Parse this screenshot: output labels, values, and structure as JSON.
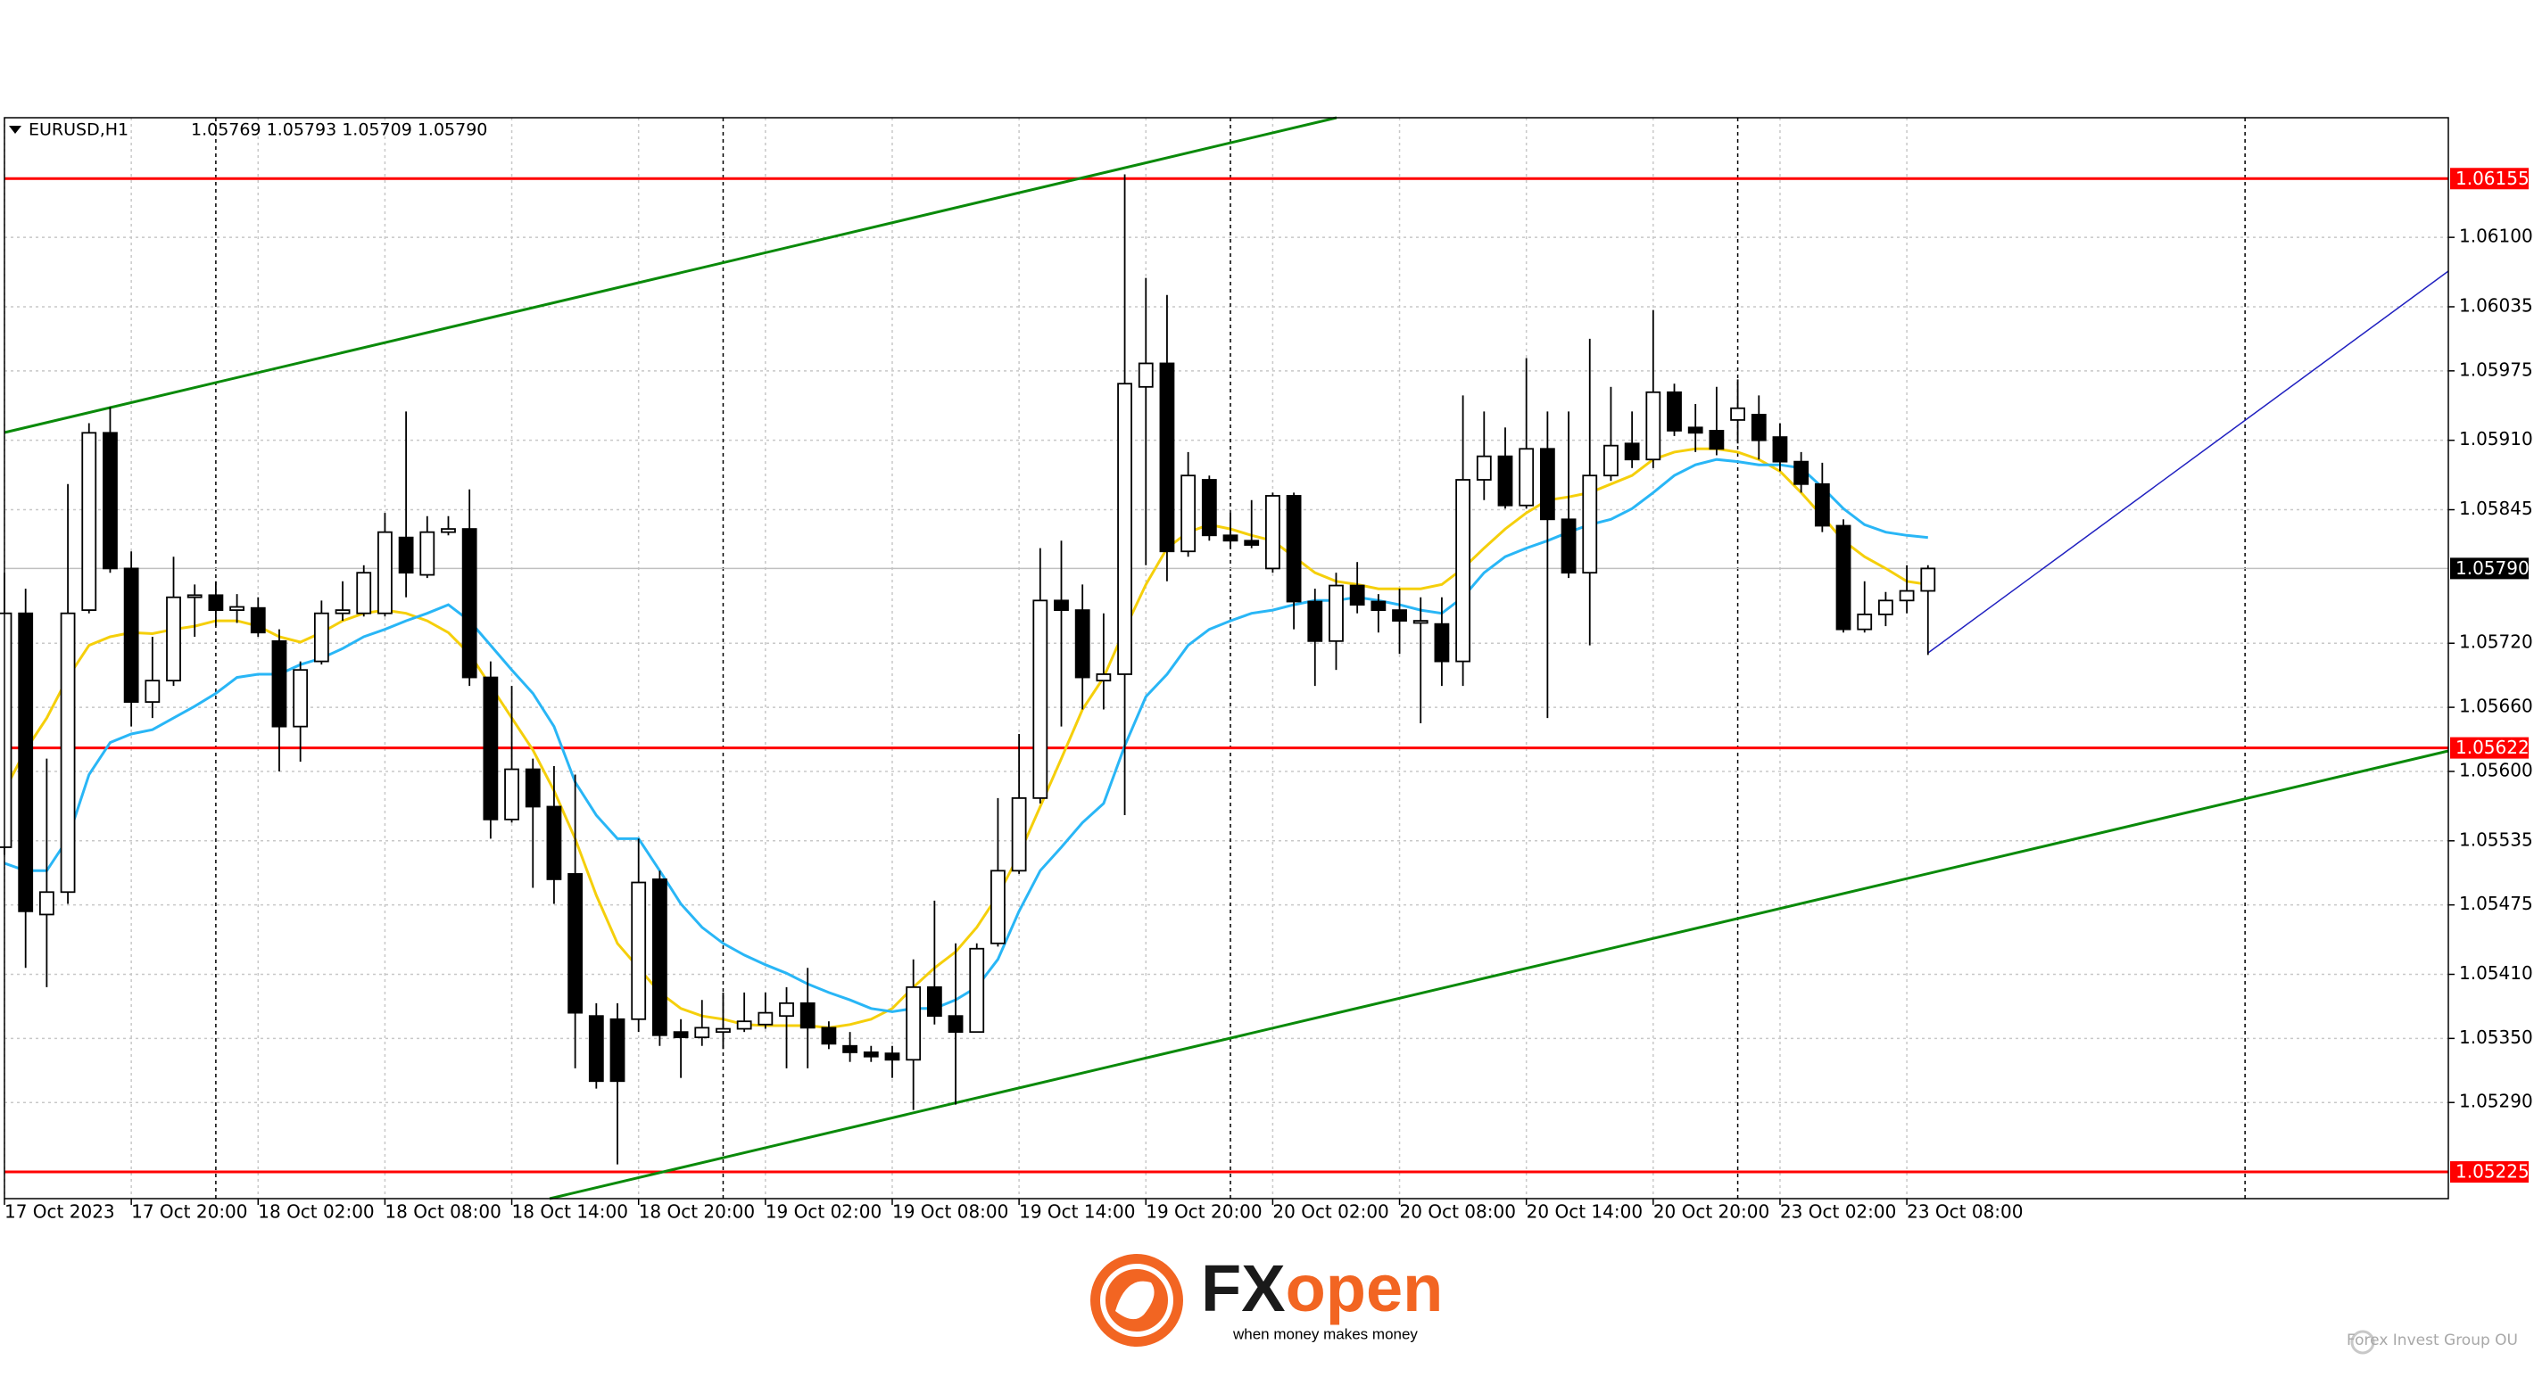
{
  "chart_data": {
    "type": "candlestick",
    "header": {
      "symbol": "EURUSD,H1",
      "ohlc": "1.05769 1.05793 1.05709 1.05790"
    },
    "x": [
      "17 Oct 2023",
      null,
      null,
      null,
      null,
      null,
      "17 Oct 20:00",
      null,
      null,
      null,
      null,
      null,
      "18 Oct 02:00",
      null,
      null,
      null,
      null,
      null,
      "18 Oct 08:00",
      null,
      null,
      null,
      null,
      null,
      "18 Oct 14:00",
      null,
      null,
      null,
      null,
      null,
      "18 Oct 20:00",
      null,
      null,
      null,
      null,
      null,
      "19 Oct 02:00",
      null,
      null,
      null,
      null,
      null,
      "19 Oct 08:00",
      null,
      null,
      null,
      null,
      null,
      "19 Oct 14:00",
      null,
      null,
      null,
      null,
      null,
      "19 Oct 20:00",
      null,
      null,
      null,
      null,
      null,
      "20 Oct 02:00",
      null,
      null,
      null,
      null,
      null,
      "20 Oct 08:00",
      null,
      null,
      null,
      null,
      null,
      "20 Oct 14:00",
      null,
      null,
      null,
      null,
      null,
      "20 Oct 20:00",
      null,
      null,
      null,
      null,
      null,
      "23 Oct 02:00",
      null,
      null,
      null,
      null,
      null,
      "23 Oct 08:00",
      null
    ],
    "open": [
      1.05529,
      1.05748,
      1.05466,
      1.05487,
      1.05751,
      1.05917,
      1.0579,
      1.05665,
      1.05685,
      1.05763,
      1.05765,
      1.05751,
      1.05753,
      1.05722,
      1.05642,
      1.05703,
      1.05748,
      1.05748,
      1.05748,
      1.05819,
      1.05784,
      1.05824,
      1.05827,
      1.05688,
      1.05555,
      1.05602,
      1.05567,
      1.05504,
      1.05371,
      1.05368,
      1.05368,
      1.05499,
      1.05356,
      1.05351,
      1.05356,
      1.05359,
      1.05363,
      1.05371,
      1.05383,
      1.0536,
      1.05343,
      1.05337,
      1.05336,
      1.0533,
      1.05398,
      1.05371,
      1.05356,
      1.05439,
      1.05507,
      1.05575,
      1.0576,
      1.05751,
      1.05685,
      1.05691,
      1.0596,
      1.05982,
      1.05806,
      1.05873,
      1.05821,
      1.05816,
      1.0579,
      1.05858,
      1.05759,
      1.05722,
      1.05774,
      1.05759,
      1.05751,
      1.05739,
      1.05738,
      1.05703,
      1.05873,
      1.05895,
      1.05849,
      1.05902,
      1.05836,
      1.05786,
      1.05877,
      1.05907,
      1.05892,
      1.05955,
      1.05922,
      1.05919,
      1.05929,
      1.05934,
      1.05913,
      1.0589,
      1.05869,
      1.0583,
      1.05733,
      1.05747,
      1.0576,
      1.05769
    ],
    "high": [
      1.05786,
      1.05771,
      1.05612,
      1.05869,
      1.05926,
      1.05941,
      1.05806,
      1.05726,
      1.05801,
      1.05775,
      1.05778,
      1.05766,
      1.05763,
      1.05733,
      1.05703,
      1.0576,
      1.05778,
      1.05793,
      1.05842,
      1.05937,
      1.05839,
      1.05839,
      1.05864,
      1.05703,
      1.0568,
      1.05612,
      1.05605,
      1.05597,
      1.05383,
      1.05383,
      1.05537,
      1.05507,
      1.05368,
      1.05386,
      1.05393,
      1.05393,
      1.05393,
      1.05398,
      1.05416,
      1.05366,
      1.05356,
      1.05343,
      1.05343,
      1.05424,
      1.05479,
      1.05439,
      1.05439,
      1.05575,
      1.05635,
      1.05809,
      1.05816,
      1.05775,
      1.05748,
      1.06159,
      1.06062,
      1.06046,
      1.05899,
      1.05877,
      1.05842,
      1.05854,
      1.05861,
      1.05861,
      1.05771,
      1.05786,
      1.05796,
      1.05766,
      1.05771,
      1.05763,
      1.05763,
      1.05952,
      1.05937,
      1.05922,
      1.05987,
      1.05937,
      1.05937,
      1.06005,
      1.0596,
      1.05937,
      1.06032,
      1.05963,
      1.05944,
      1.0596,
      1.05967,
      1.05952,
      1.05926,
      1.05899,
      1.05889,
      1.05836,
      1.05778,
      1.05768,
      1.05793,
      1.05793
    ],
    "low": [
      1.05522,
      1.05416,
      1.05398,
      1.05476,
      1.05748,
      1.05786,
      1.05642,
      1.0565,
      1.0568,
      1.05726,
      1.05736,
      1.05739,
      1.05726,
      1.056,
      1.05609,
      1.057,
      1.05741,
      1.05745,
      1.05745,
      1.05763,
      1.05781,
      1.05821,
      1.0568,
      1.05537,
      1.05552,
      1.05491,
      1.05476,
      1.05322,
      1.05303,
      1.05232,
      1.05356,
      1.05343,
      1.05313,
      1.05343,
      1.0534,
      1.05356,
      1.05359,
      1.05322,
      1.05322,
      1.0534,
      1.05328,
      1.05328,
      1.05313,
      1.05283,
      1.05363,
      1.05288,
      1.05356,
      1.05436,
      1.05504,
      1.0557,
      1.05642,
      1.05658,
      1.05658,
      1.05559,
      1.05793,
      1.05778,
      1.05801,
      1.05816,
      1.05809,
      1.05809,
      1.05786,
      1.05733,
      1.0568,
      1.05695,
      1.05748,
      1.0573,
      1.0571,
      1.05645,
      1.0568,
      1.0568,
      1.05854,
      1.05846,
      1.05846,
      1.0565,
      1.05781,
      1.05718,
      1.05872,
      1.05884,
      1.05884,
      1.05914,
      1.05899,
      1.05896,
      1.05907,
      1.05892,
      1.05881,
      1.05861,
      1.05824,
      1.0573,
      1.0573,
      1.05736,
      1.05748,
      1.05709
    ],
    "close": [
      1.05748,
      1.05469,
      1.05487,
      1.05748,
      1.05917,
      1.0579,
      1.05665,
      1.05685,
      1.05763,
      1.05765,
      1.05751,
      1.05754,
      1.0573,
      1.05642,
      1.05695,
      1.05748,
      1.05751,
      1.05786,
      1.05824,
      1.05786,
      1.05824,
      1.05827,
      1.05688,
      1.05555,
      1.05602,
      1.05567,
      1.05499,
      1.05374,
      1.0531,
      1.0531,
      1.05496,
      1.05353,
      1.05351,
      1.0536,
      1.05359,
      1.05366,
      1.05374,
      1.05383,
      1.0536,
      1.05345,
      1.05337,
      1.05333,
      1.0533,
      1.05398,
      1.05371,
      1.05356,
      1.05434,
      1.05507,
      1.05575,
      1.0576,
      1.05751,
      1.05688,
      1.05691,
      1.05963,
      1.05982,
      1.05806,
      1.05877,
      1.05821,
      1.05816,
      1.05812,
      1.05858,
      1.05759,
      1.05722,
      1.05774,
      1.05756,
      1.05751,
      1.05741,
      1.05741,
      1.05703,
      1.05873,
      1.05895,
      1.05849,
      1.05902,
      1.05836,
      1.05786,
      1.05877,
      1.05905,
      1.05892,
      1.05955,
      1.05919,
      1.05917,
      1.05902,
      1.0594,
      1.0591,
      1.0589,
      1.05869,
      1.0583,
      1.05733,
      1.05747,
      1.0576,
      1.05769,
      1.0579
    ],
    "up_color": "#ffffff",
    "down_color": "#000000",
    "indicators": [
      {
        "color": "#f5cf0b",
        "values": [
          1.05582,
          1.0562,
          1.0565,
          1.05688,
          1.05718,
          1.05726,
          1.0573,
          1.05729,
          1.05733,
          1.05736,
          1.05741,
          1.05741,
          1.05736,
          1.05726,
          1.05721,
          1.0573,
          1.05741,
          1.05748,
          1.05751,
          1.05748,
          1.05741,
          1.0573,
          1.0571,
          1.0568,
          1.0565,
          1.0562,
          1.05582,
          1.05537,
          1.05484,
          1.05439,
          1.05416,
          1.05393,
          1.05378,
          1.05371,
          1.05368,
          1.05363,
          1.05362,
          1.05362,
          1.05362,
          1.0536,
          1.05363,
          1.05368,
          1.05378,
          1.05398,
          1.05416,
          1.05431,
          1.05454,
          1.05484,
          1.05522,
          1.05567,
          1.05612,
          1.05658,
          1.05688,
          1.05733,
          1.05775,
          1.05809,
          1.05824,
          1.05831,
          1.05827,
          1.05821,
          1.05816,
          1.05801,
          1.05786,
          1.05778,
          1.05775,
          1.05771,
          1.05771,
          1.05771,
          1.05775,
          1.0579,
          1.05809,
          1.05827,
          1.05842,
          1.05854,
          1.05857,
          1.05861,
          1.05869,
          1.05877,
          1.05892,
          1.05899,
          1.05902,
          1.05902,
          1.05899,
          1.05892,
          1.05881,
          1.05861,
          1.05839,
          1.05816,
          1.05801,
          1.0579,
          1.05778,
          1.05775
        ]
      },
      {
        "color": "#29b6f6",
        "values": [
          1.05514,
          1.05507,
          1.05507,
          1.05537,
          1.05597,
          1.05627,
          1.05635,
          1.05639,
          1.0565,
          1.05661,
          1.05673,
          1.05688,
          1.05691,
          1.05691,
          1.057,
          1.05706,
          1.05715,
          1.05726,
          1.05733,
          1.05741,
          1.05748,
          1.05756,
          1.05741,
          1.05718,
          1.05695,
          1.05673,
          1.05642,
          1.0559,
          1.05559,
          1.05537,
          1.05537,
          1.05507,
          1.05476,
          1.05454,
          1.05439,
          1.05428,
          1.05419,
          1.05411,
          1.05401,
          1.05393,
          1.05386,
          1.05378,
          1.05375,
          1.05378,
          1.05378,
          1.05386,
          1.05398,
          1.05424,
          1.05469,
          1.05507,
          1.05529,
          1.05552,
          1.0557,
          1.05624,
          1.0567,
          1.05691,
          1.05718,
          1.05733,
          1.05741,
          1.05748,
          1.05751,
          1.05756,
          1.0576,
          1.0576,
          1.05763,
          1.0576,
          1.05756,
          1.05751,
          1.05748,
          1.05763,
          1.05786,
          1.05801,
          1.05809,
          1.05816,
          1.05824,
          1.05831,
          1.05836,
          1.05846,
          1.05861,
          1.05877,
          1.05887,
          1.05892,
          1.0589,
          1.05887,
          1.05887,
          1.05884,
          1.05866,
          1.05846,
          1.05831,
          1.05824,
          1.05821,
          1.05819
        ]
      }
    ],
    "levels": [
      {
        "value": 1.06155,
        "color": "#ff0000",
        "label_bg": "#ff0000"
      },
      {
        "value": 1.05622,
        "color": "#ff0000",
        "label_bg": "#ff0000"
      },
      {
        "value": 1.05225,
        "color": "#ff0000",
        "label_bg": "#ff0000"
      },
      {
        "value": 1.0579,
        "label": "1.05790",
        "color": "#c0c0c0",
        "label_bg": "#000000"
      }
    ],
    "ylim": [
      1.052,
      1.06212
    ],
    "yticks": [
      {
        "value": 1.061,
        "label": "1.06100"
      },
      1.06035,
      1.05975,
      {
        "value": 1.0591,
        "label": "1.05910"
      },
      1.05845,
      {
        "value": 1.0572,
        "label": "1.05720"
      },
      {
        "value": 1.0566,
        "label": "1.05660"
      },
      {
        "value": 1.056,
        "label": "1.05600"
      },
      1.05535,
      1.05475,
      {
        "value": 1.0541,
        "label": "1.05410"
      },
      {
        "value": 1.0535,
        "label": "1.05350"
      },
      {
        "value": 1.0529,
        "label": "1.05290"
      }
    ],
    "grid": true
  },
  "branding": {
    "brand_prefix": "FX",
    "brand_suffix": "open",
    "tagline": "when money makes money",
    "company": "Forex Invest Group OU"
  }
}
